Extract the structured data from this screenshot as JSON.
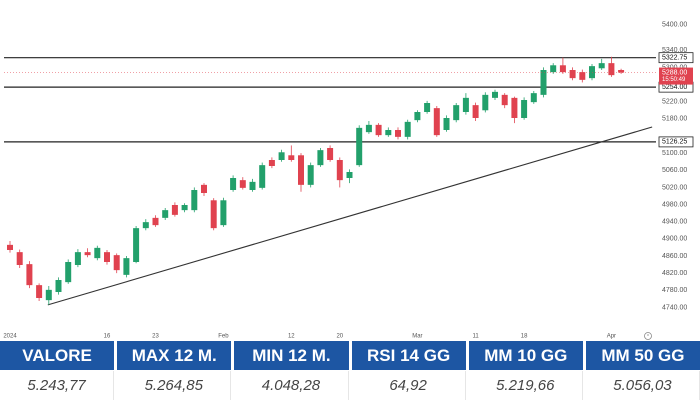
{
  "chart_data": {
    "type": "candlestick",
    "categories": [
      "2024",
      null,
      null,
      null,
      null,
      null,
      null,
      null,
      null,
      null,
      "16",
      null,
      null,
      null,
      null,
      "23",
      null,
      null,
      null,
      null,
      null,
      null,
      "Feb",
      null,
      null,
      null,
      null,
      null,
      null,
      "12",
      null,
      null,
      null,
      null,
      "20",
      null,
      null,
      null,
      null,
      null,
      null,
      null,
      "Mar",
      null,
      null,
      null,
      null,
      null,
      "11",
      null,
      null,
      null,
      null,
      "18",
      null,
      null,
      null,
      null,
      null,
      null,
      null,
      null,
      "Apr",
      null
    ],
    "open": [
      4886,
      4869,
      4841,
      4792,
      4757,
      4776,
      4799,
      4839,
      4869,
      4855,
      4869,
      4862,
      4816,
      4846,
      4925,
      4949,
      4949,
      4979,
      4967,
      4967,
      5026,
      4990,
      4932,
      5014,
      5037,
      5014,
      5019,
      5084,
      5084,
      5095,
      5095,
      5026,
      5072,
      5112,
      5084,
      5042,
      5072,
      5149,
      5166,
      5142,
      5154,
      5138,
      5177,
      5196,
      5205,
      5154,
      5177,
      5196,
      5212,
      5200,
      5229,
      5236,
      5229,
      5182,
      5219,
      5236,
      5289,
      5305,
      5294,
      5289,
      5275,
      5298,
      5310,
      5294
    ],
    "high": [
      4895,
      4875,
      4848,
      4796,
      4790,
      4810,
      4852,
      4876,
      4878,
      4884,
      4874,
      4866,
      4860,
      4930,
      4946,
      4955,
      4972,
      4985,
      4983,
      5020,
      5030,
      4995,
      4996,
      5048,
      5044,
      5040,
      5078,
      5090,
      5108,
      5118,
      5100,
      5078,
      5112,
      5118,
      5090,
      5062,
      5165,
      5175,
      5170,
      5160,
      5160,
      5178,
      5200,
      5222,
      5210,
      5188,
      5217,
      5240,
      5218,
      5242,
      5248,
      5240,
      5232,
      5230,
      5245,
      5300,
      5310,
      5323,
      5300,
      5295,
      5308,
      5320,
      5325,
      5297
    ],
    "low": [
      4868,
      4832,
      4785,
      4755,
      4746,
      4770,
      4795,
      4834,
      4857,
      4850,
      4840,
      4820,
      4810,
      4843,
      4920,
      4928,
      4944,
      4952,
      4962,
      4962,
      5000,
      4920,
      4928,
      5010,
      5015,
      5010,
      5015,
      5065,
      5080,
      5080,
      5010,
      5020,
      5068,
      5080,
      5020,
      5030,
      5068,
      5145,
      5138,
      5138,
      5132,
      5132,
      5172,
      5192,
      5138,
      5150,
      5172,
      5190,
      5175,
      5195,
      5224,
      5205,
      5170,
      5178,
      5215,
      5230,
      5285,
      5285,
      5270,
      5265,
      5270,
      5294,
      5278,
      5285
    ],
    "close": [
      4874,
      4839,
      4792,
      4762,
      4781,
      4804,
      4846,
      4869,
      4862,
      4879,
      4846,
      4827,
      4855,
      4925,
      4939,
      4932,
      4967,
      4956,
      4979,
      5014,
      5007,
      4925,
      4990,
      5042,
      5019,
      5033,
      5072,
      5070,
      5102,
      5084,
      5026,
      5072,
      5107,
      5084,
      5037,
      5056,
      5159,
      5166,
      5142,
      5154,
      5138,
      5173,
      5196,
      5217,
      5142,
      5182,
      5212,
      5229,
      5182,
      5236,
      5243,
      5212,
      5182,
      5224,
      5240,
      5294,
      5305,
      5289,
      5275,
      5271,
      5303,
      5310,
      5282,
      5288
    ],
    "up_color": "#22a06b",
    "down_color": "#e0424f",
    "ylim": [
      4685,
      5420
    ],
    "yticks": [
      {
        "value": 4740,
        "label": "4740.00"
      },
      {
        "value": 4780,
        "label": "4780.00"
      },
      {
        "value": 4820,
        "label": "4820.00"
      },
      {
        "value": 4860,
        "label": "4860.00"
      },
      {
        "value": 4900,
        "label": "4900.00"
      },
      {
        "value": 4940,
        "label": "4940.00"
      },
      {
        "value": 4980,
        "label": "4980.00"
      },
      {
        "value": 5020,
        "label": "5020.00"
      },
      {
        "value": 5060,
        "label": "5060.00"
      },
      {
        "value": 5100,
        "label": "5100.00"
      },
      {
        "value": 5180,
        "label": "5180.00"
      },
      {
        "value": 5220,
        "label": "5220.00"
      },
      {
        "value": 5300,
        "label": "5300.00"
      },
      {
        "value": 5340,
        "label": "5340.00"
      },
      {
        "value": 5400,
        "label": "5400.00"
      }
    ],
    "grid": false,
    "levels": [
      {
        "value": 5322.75,
        "label": "5322.75"
      },
      {
        "value": 5254,
        "label": "5254.00"
      },
      {
        "value": 5126.25,
        "label": "5126.25"
      }
    ],
    "last_price": {
      "value": 5288,
      "label": "5288.00"
    },
    "countdown": "15:50:49",
    "trendline": {
      "x": [
        3.9,
        66.2
      ],
      "y": [
        4746,
        5161
      ]
    }
  },
  "table": {
    "headers": [
      "VALORE",
      "MAX 12 M.",
      "MIN 12 M.",
      "RSI 14 GG",
      "MM 10 GG",
      "MM 50 GG"
    ],
    "rows": [
      [
        "5.243,77",
        "5.264,85",
        "4.048,28",
        "64,92",
        "5.219,66",
        "5.056,03"
      ]
    ]
  }
}
